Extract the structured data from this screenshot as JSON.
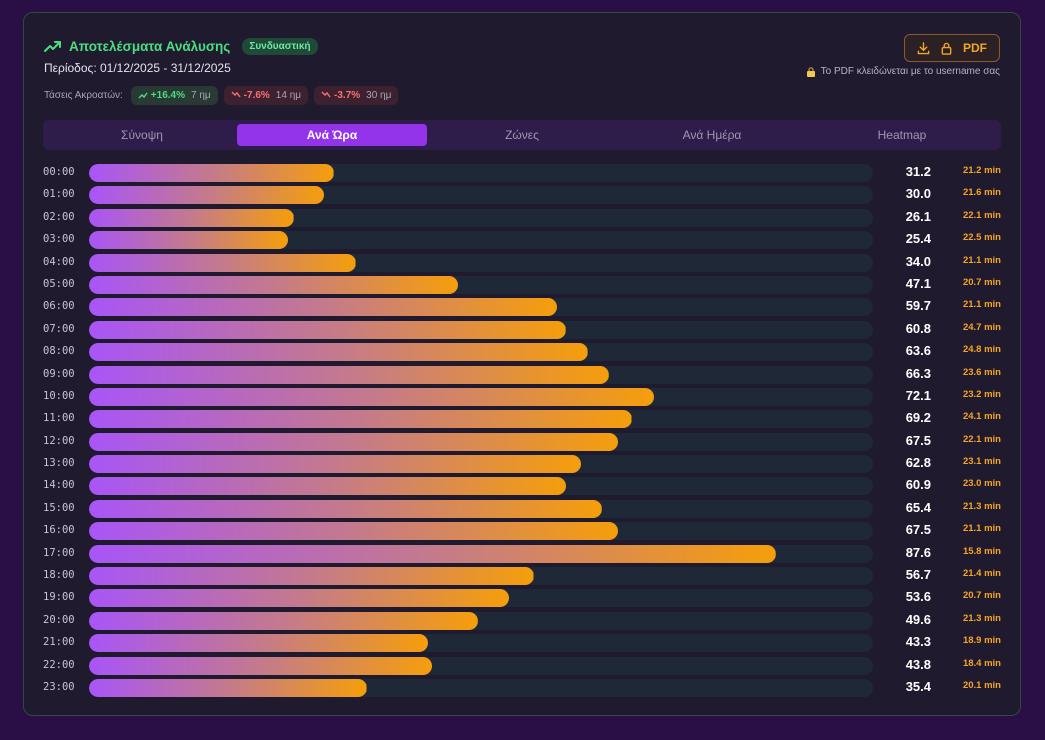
{
  "header": {
    "title": "Αποτελέσματα Ανάλυσης",
    "badge": "Συνδυαστική",
    "period": "Περίοδος: 01/12/2025 - 31/12/2025",
    "trends_label": "Τάσεις Ακροατών:",
    "trends": [
      {
        "pct": "+16.4%",
        "days": "7 ημ",
        "direction": "up"
      },
      {
        "pct": "-7.6%",
        "days": "14 ημ",
        "direction": "down"
      },
      {
        "pct": "-3.7%",
        "days": "30 ημ",
        "direction": "down"
      }
    ]
  },
  "pdf": {
    "button_label": "PDF",
    "note": "Το PDF κλειδώνεται με το username σας"
  },
  "tabs": [
    {
      "label": "Σύνοψη",
      "active": false
    },
    {
      "label": "Ανά Ώρα",
      "active": true
    },
    {
      "label": "Ζώνες",
      "active": false
    },
    {
      "label": "Ανά Ημέρα",
      "active": false
    },
    {
      "label": "Heatmap",
      "active": false
    }
  ],
  "colors": {
    "accent": "#9333ea",
    "positive": "#4ade80",
    "negative": "#f87171",
    "duration": "#f5a524",
    "bar_start": "#a855f7",
    "bar_end": "#f59e0b"
  },
  "chart_data": {
    "type": "bar",
    "orientation": "horizontal",
    "xlim": [
      0,
      100
    ],
    "categories": [
      "00:00",
      "01:00",
      "02:00",
      "03:00",
      "04:00",
      "05:00",
      "06:00",
      "07:00",
      "08:00",
      "09:00",
      "10:00",
      "11:00",
      "12:00",
      "13:00",
      "14:00",
      "15:00",
      "16:00",
      "17:00",
      "18:00",
      "19:00",
      "20:00",
      "21:00",
      "22:00",
      "23:00"
    ],
    "values": [
      31.2,
      30.0,
      26.1,
      25.4,
      34.0,
      47.1,
      59.7,
      60.8,
      63.6,
      66.3,
      72.1,
      69.2,
      67.5,
      62.8,
      60.9,
      65.4,
      67.5,
      87.6,
      56.7,
      53.6,
      49.6,
      43.3,
      43.8,
      35.4
    ],
    "value_labels": [
      "31.2",
      "30.0",
      "26.1",
      "25.4",
      "34.0",
      "47.1",
      "59.7",
      "60.8",
      "63.6",
      "66.3",
      "72.1",
      "69.2",
      "67.5",
      "62.8",
      "60.9",
      "65.4",
      "67.5",
      "87.6",
      "56.7",
      "53.6",
      "49.6",
      "43.3",
      "43.8",
      "35.4"
    ],
    "durations": [
      "21.2 min",
      "21.6 min",
      "22.1 min",
      "22.5 min",
      "21.1 min",
      "20.7 min",
      "21.1 min",
      "24.7 min",
      "24.8 min",
      "23.6 min",
      "23.2 min",
      "24.1 min",
      "22.1 min",
      "23.1 min",
      "23.0 min",
      "21.3 min",
      "21.1 min",
      "15.8 min",
      "21.4 min",
      "20.7 min",
      "21.3 min",
      "18.9 min",
      "18.4 min",
      "20.1 min"
    ]
  }
}
